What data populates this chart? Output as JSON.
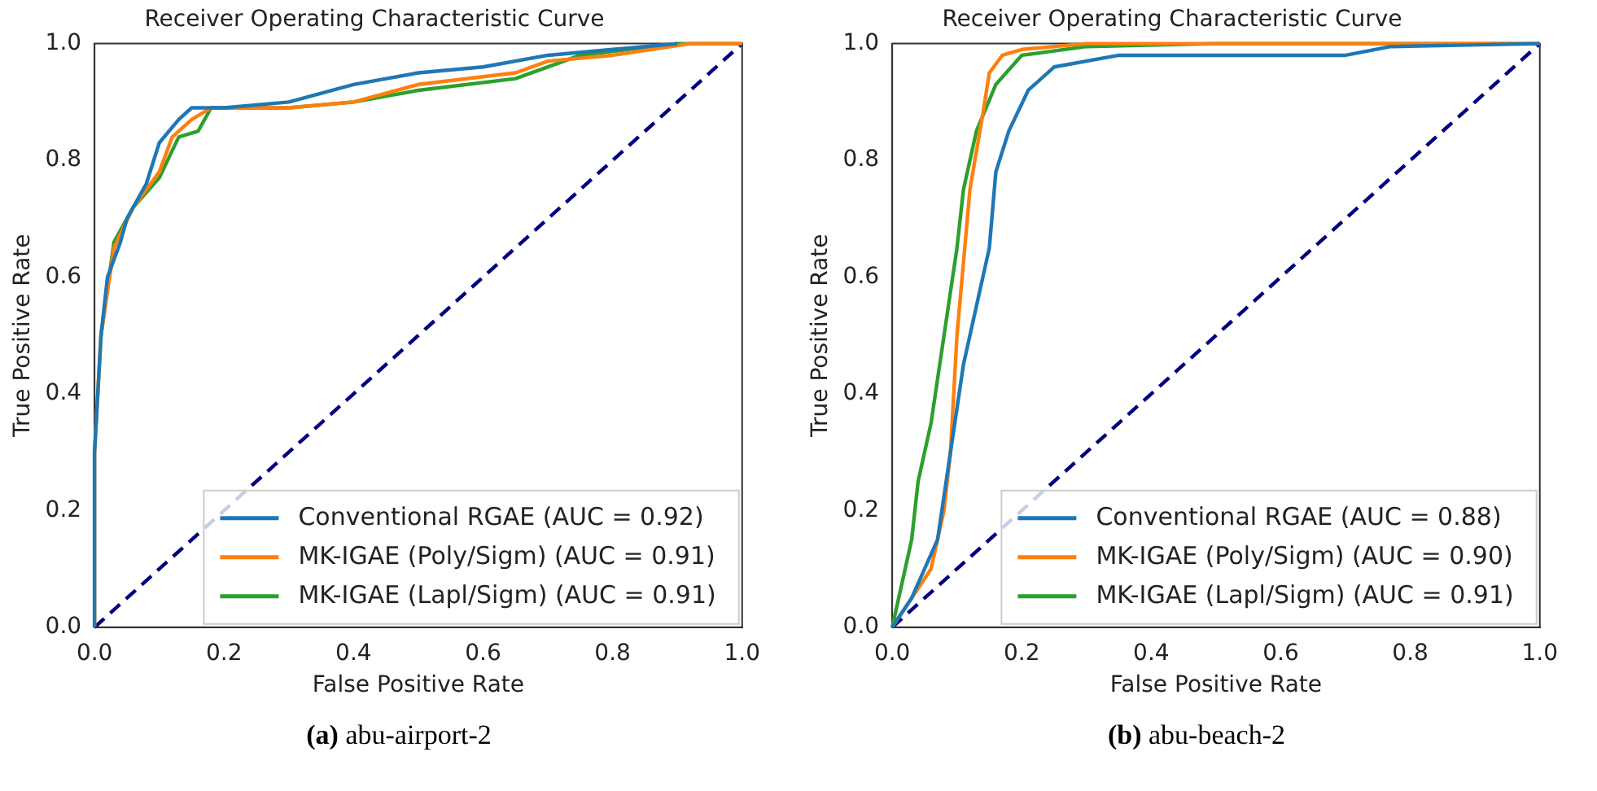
{
  "chart_data": [
    {
      "type": "line",
      "title": "Receiver Operating Characteristic Curve",
      "xlabel": "False Positive Rate",
      "ylabel": "True Positive Rate",
      "xlim": [
        0,
        1
      ],
      "ylim": [
        0,
        1
      ],
      "xticks": [
        {
          "value": 0,
          "label": "0.0"
        },
        {
          "value": 0.2,
          "label": "0.2"
        },
        {
          "value": 0.4,
          "label": "0.4"
        },
        {
          "value": 0.6,
          "label": "0.6"
        },
        {
          "value": 0.8,
          "label": "0.8"
        },
        {
          "value": 1,
          "label": "1.0"
        }
      ],
      "yticks": [
        {
          "value": 0,
          "label": "0.0"
        },
        {
          "value": 0.2,
          "label": "0.2"
        },
        {
          "value": 0.4,
          "label": "0.4"
        },
        {
          "value": 0.6,
          "label": "0.6"
        },
        {
          "value": 0.8,
          "label": "0.8"
        },
        {
          "value": 1,
          "label": "1.0"
        }
      ],
      "grid": false,
      "legend": "bottom right",
      "marker": "none",
      "annotations": [
        "(a) abu-airport-2"
      ],
      "series": [
        {
          "name": "Conventional RGAE (AUC = 0.92)",
          "color": "#1f77b4",
          "x": [
            0,
            0,
            0.01,
            0.02,
            0.04,
            0.05,
            0.08,
            0.1,
            0.13,
            0.15,
            0.2,
            0.3,
            0.4,
            0.5,
            0.6,
            0.7,
            0.8,
            0.9
          ],
          "values": [
            0,
            0.3,
            0.5,
            0.6,
            0.66,
            0.7,
            0.76,
            0.83,
            0.87,
            0.89,
            0.89,
            0.9,
            0.93,
            0.95,
            0.96,
            0.98,
            0.99,
            1
          ]
        },
        {
          "name": "MK-IGAE (Poly/Sigm) (AUC = 0.91)",
          "color": "#ff7f0e",
          "x": [
            0,
            0,
            0.01,
            0.03,
            0.06,
            0.1,
            0.12,
            0.15,
            0.18,
            0.3,
            0.4,
            0.5,
            0.65,
            0.7,
            0.8,
            0.92,
            1
          ],
          "values": [
            0,
            0.3,
            0.5,
            0.65,
            0.72,
            0.78,
            0.84,
            0.87,
            0.89,
            0.89,
            0.9,
            0.93,
            0.95,
            0.97,
            0.98,
            1,
            1
          ]
        },
        {
          "name": "MK-IGAE (Lapl/Sigm) (AUC = 0.91)",
          "color": "#2ca02c",
          "x": [
            0.01,
            0.03,
            0.06,
            0.1,
            0.13,
            0.16,
            0.18,
            0.3,
            0.4,
            0.5,
            0.65,
            0.75,
            0.9,
            1
          ],
          "values": [
            0.5,
            0.66,
            0.72,
            0.77,
            0.84,
            0.85,
            0.89,
            0.89,
            0.9,
            0.92,
            0.94,
            0.98,
            1,
            1
          ]
        },
        {
          "color": "#000080",
          "line_style": "dashed",
          "x": [
            0,
            1
          ],
          "values": [
            0,
            1
          ]
        }
      ]
    },
    {
      "type": "line",
      "title": "Receiver Operating Characteristic Curve",
      "xlabel": "False Positive Rate",
      "ylabel": "True Positive Rate",
      "xlim": [
        0,
        1
      ],
      "ylim": [
        0,
        1
      ],
      "xticks": [
        {
          "value": 0,
          "label": "0.0"
        },
        {
          "value": 0.2,
          "label": "0.2"
        },
        {
          "value": 0.4,
          "label": "0.4"
        },
        {
          "value": 0.6,
          "label": "0.6"
        },
        {
          "value": 0.8,
          "label": "0.8"
        },
        {
          "value": 1,
          "label": "1.0"
        }
      ],
      "yticks": [
        {
          "value": 0,
          "label": "0.0"
        },
        {
          "value": 0.2,
          "label": "0.2"
        },
        {
          "value": 0.4,
          "label": "0.4"
        },
        {
          "value": 0.6,
          "label": "0.6"
        },
        {
          "value": 0.8,
          "label": "0.8"
        },
        {
          "value": 1,
          "label": "1.0"
        }
      ],
      "grid": false,
      "legend": "bottom right",
      "marker": "none",
      "annotations": [
        "(b) abu-beach-2"
      ],
      "series": [
        {
          "name": "Conventional RGAE (AUC = 0.88)",
          "color": "#1f77b4",
          "x": [
            0,
            0.03,
            0.07,
            0.09,
            0.11,
            0.13,
            0.15,
            0.16,
            0.18,
            0.21,
            0.25,
            0.35,
            0.7,
            0.77,
            1
          ],
          "values": [
            0,
            0.05,
            0.15,
            0.3,
            0.45,
            0.55,
            0.65,
            0.78,
            0.85,
            0.92,
            0.96,
            0.98,
            0.98,
            0.995,
            1
          ]
        },
        {
          "name": "MK-IGAE (Poly/Sigm) (AUC = 0.90)",
          "color": "#ff7f0e",
          "x": [
            0,
            0.03,
            0.06,
            0.08,
            0.09,
            0.1,
            0.12,
            0.14,
            0.15,
            0.17,
            0.2,
            0.3,
            1
          ],
          "values": [
            0,
            0.05,
            0.1,
            0.2,
            0.3,
            0.5,
            0.75,
            0.88,
            0.95,
            0.98,
            0.99,
            1,
            1
          ]
        },
        {
          "name": "MK-IGAE (Lapl/Sigm) (AUC = 0.91)",
          "color": "#2ca02c",
          "x": [
            0,
            0.01,
            0.03,
            0.04,
            0.06,
            0.08,
            0.1,
            0.11,
            0.13,
            0.16,
            0.2,
            0.3,
            0.5,
            1
          ],
          "values": [
            0,
            0.05,
            0.15,
            0.25,
            0.35,
            0.5,
            0.65,
            0.75,
            0.85,
            0.93,
            0.98,
            0.995,
            1,
            1
          ]
        },
        {
          "color": "#000080",
          "line_style": "dashed",
          "x": [
            0,
            1
          ],
          "values": [
            0,
            1
          ]
        }
      ]
    }
  ]
}
